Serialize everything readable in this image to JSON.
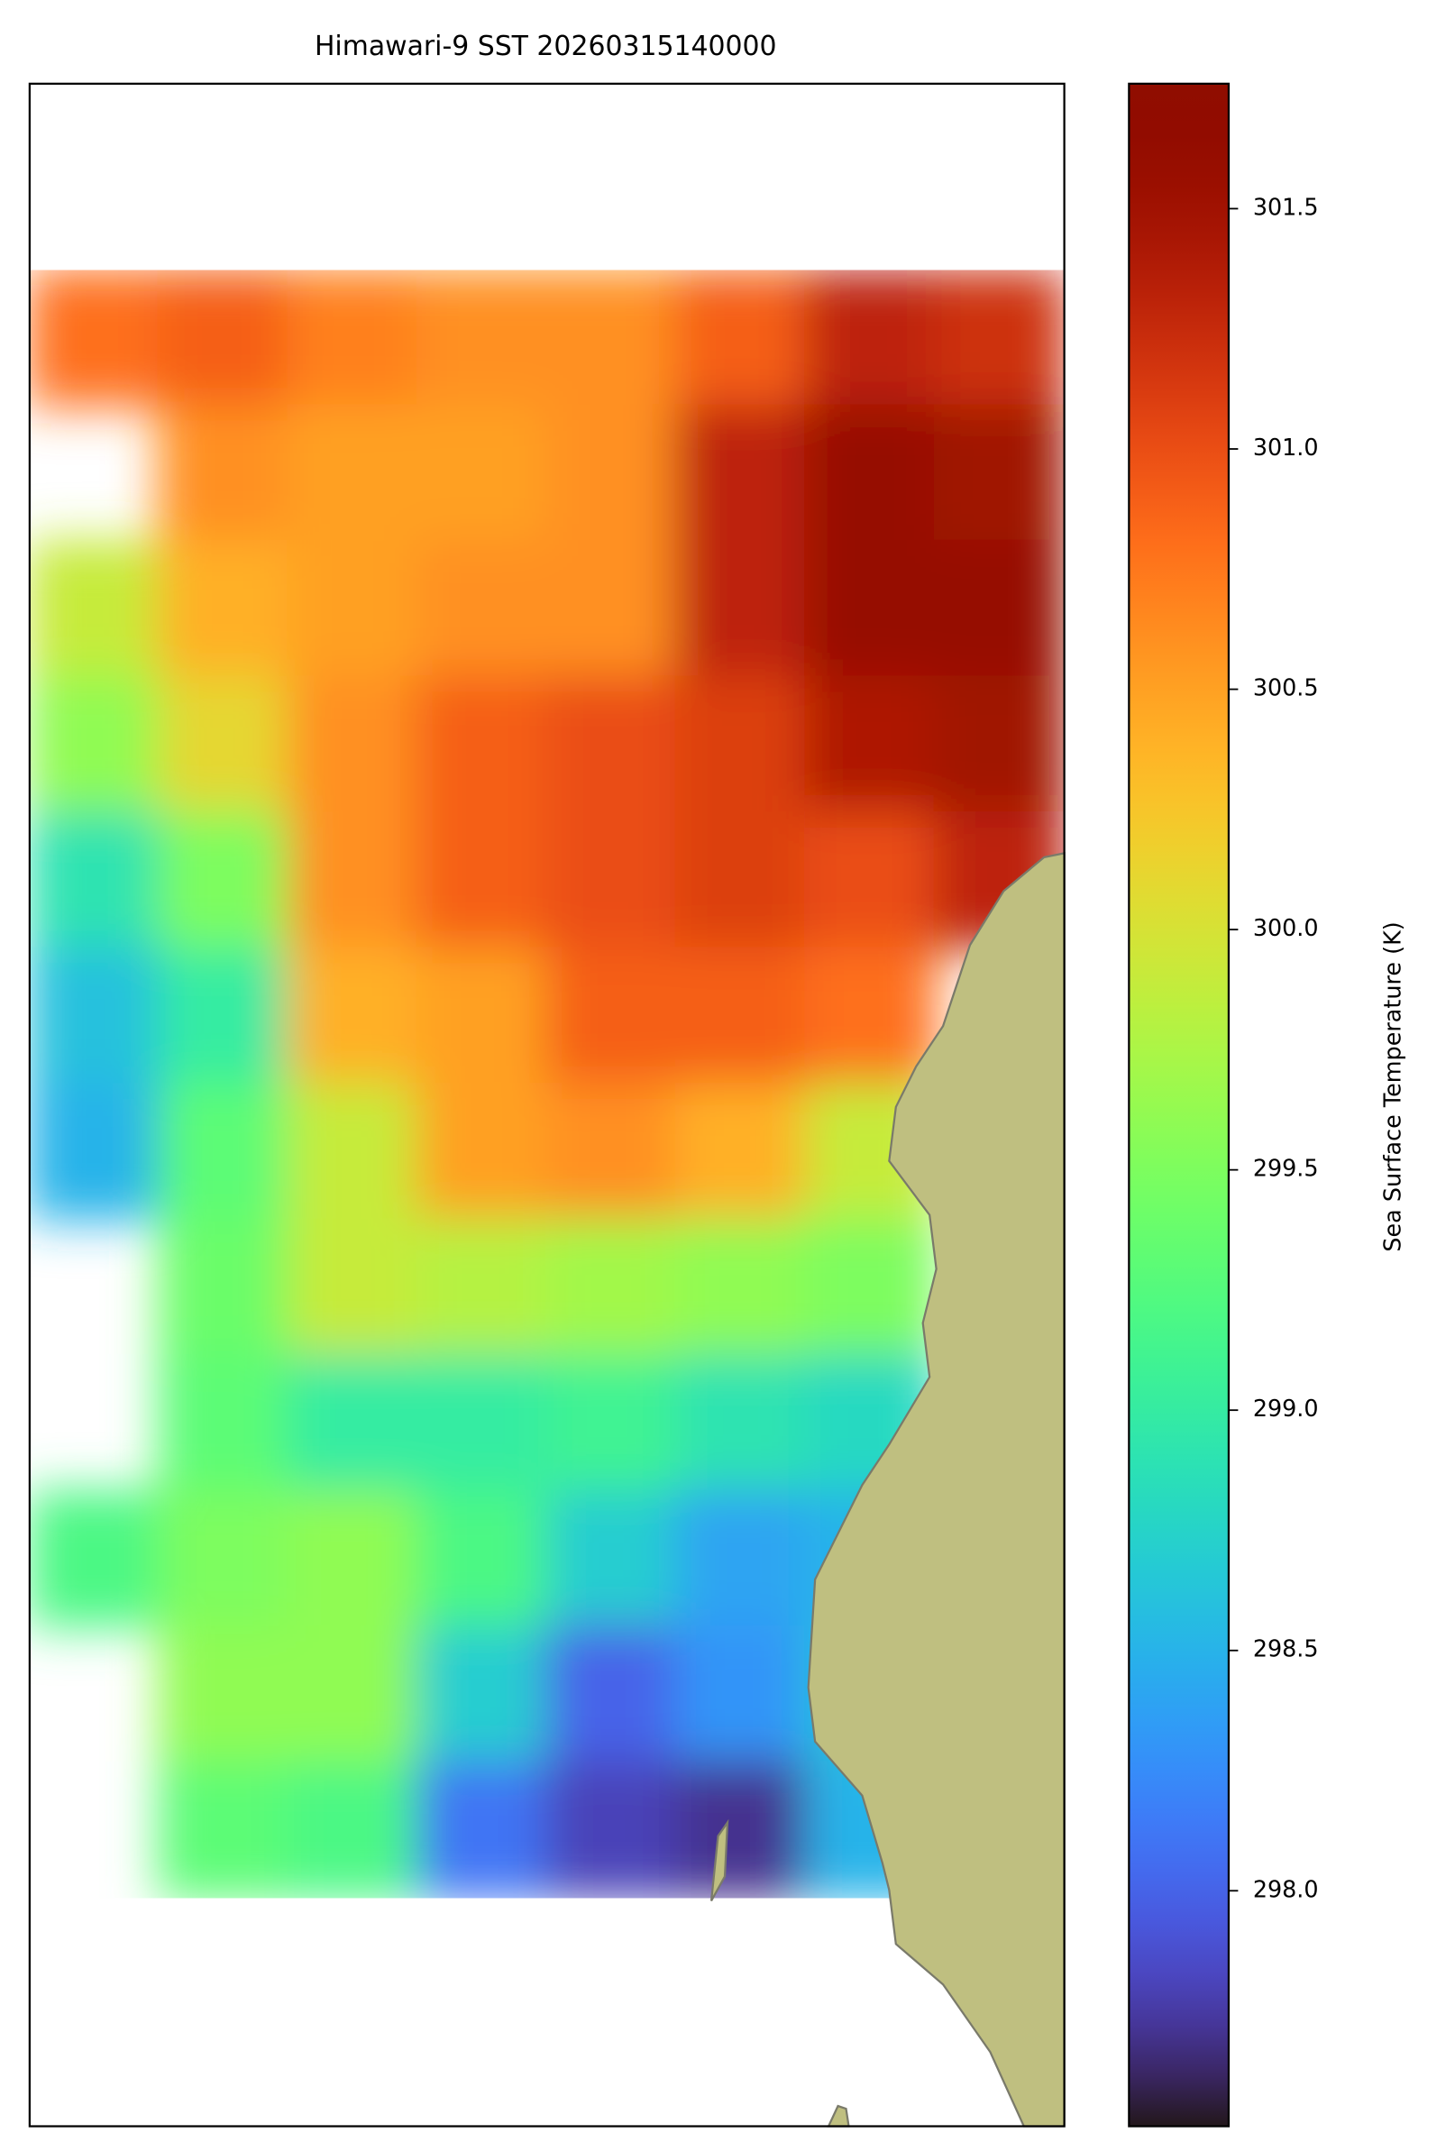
{
  "chart_data": {
    "type": "heatmap",
    "title": "Himawari-9 SST 20260315140000",
    "colormap": "turbo",
    "colorbar_label": "Sea Surface Temperature (K)",
    "clim": [
      297.51,
      301.76
    ],
    "cticks": [
      {
        "value": 298,
        "label": "298.0"
      },
      298.5,
      {
        "value": 299,
        "label": "299.0"
      },
      299.5,
      {
        "value": 300,
        "label": "300.0"
      },
      300.5,
      {
        "value": 301,
        "label": "301.0"
      },
      301.5
    ],
    "grid_values": [
      [
        300.8,
        300.9,
        300.7,
        300.6,
        300.6,
        300.9,
        301.3,
        301.2
      ],
      [
        null,
        300.6,
        300.5,
        300.5,
        300.6,
        301.3,
        301.6,
        301.5
      ],
      [
        299.9,
        300.4,
        300.5,
        300.6,
        300.6,
        301.3,
        301.6,
        301.6
      ],
      [
        299.6,
        300.1,
        300.6,
        300.9,
        301.0,
        301.1,
        301.4,
        301.5
      ],
      [
        298.9,
        299.5,
        300.6,
        300.9,
        301.0,
        301.1,
        301.0,
        301.3
      ],
      [
        298.6,
        299.0,
        300.4,
        300.5,
        300.9,
        300.9,
        300.8,
        null
      ],
      [
        298.5,
        299.3,
        299.9,
        300.5,
        300.6,
        300.4,
        299.9,
        null
      ],
      [
        null,
        299.4,
        299.9,
        299.8,
        299.7,
        299.6,
        299.5,
        null
      ],
      [
        null,
        299.3,
        299.0,
        299.0,
        299.1,
        298.9,
        298.8,
        null
      ],
      [
        299.2,
        299.5,
        299.6,
        299.2,
        298.7,
        298.4,
        298.5,
        null
      ],
      [
        null,
        299.6,
        299.6,
        298.7,
        298.0,
        298.3,
        298.6,
        null
      ],
      [
        null,
        299.3,
        299.2,
        298.1,
        297.8,
        297.7,
        298.5,
        null
      ]
    ]
  }
}
